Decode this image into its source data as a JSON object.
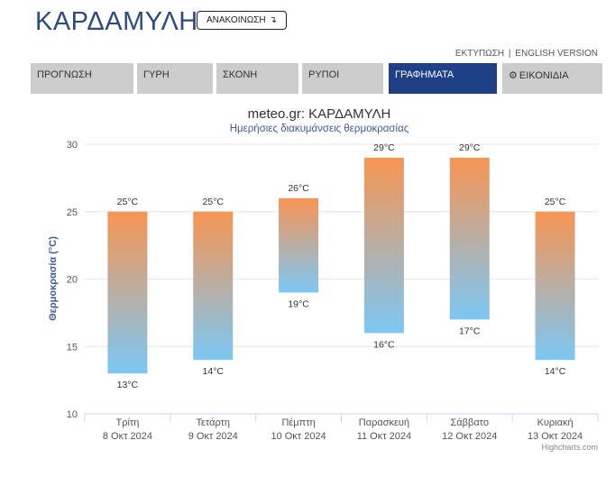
{
  "header": {
    "site_title": "ΚΑΡΔΑΜΥΛΗ",
    "announce_label": "ΑΝΑΚΟΙΝΩΣΗ",
    "announce_icon": "arrow-down-right-icon",
    "print_label": "ΕΚΤΥΠΩΣΗ",
    "separator": "|",
    "english_label": "ENGLISH VERSION"
  },
  "tabs": [
    {
      "label": "ΠΡΟΓΝΩΣΗ",
      "active": false
    },
    {
      "label": "ΓΥΡΗ",
      "active": false
    },
    {
      "label": "ΣΚΟΝΗ",
      "active": false
    },
    {
      "label": "ΡΥΠΟΙ",
      "active": false
    },
    {
      "label": "ΓΡΑΦΗΜΑΤΑ",
      "active": true
    },
    {
      "label": "ΕΙΚΟΝΙΔΙΑ",
      "active": false,
      "icon": "gear-icon"
    }
  ],
  "colors": {
    "accent": "#1f3f86",
    "title": "#2c4a86",
    "bar_top": "#f79553",
    "bar_bottom": "#7cc7f4",
    "tab_bg": "#cccccc",
    "subtitle": "#3d5a9e"
  },
  "chart_data": {
    "type": "columnrange",
    "title": "meteo.gr: ΚΑΡΔΑΜΥΛΗ",
    "subtitle": "Ημερήσιες διακυμάνσεις θερμοκρασίας",
    "ylabel": "Θερμοκρασία (°C)",
    "ylim": [
      10,
      30
    ],
    "yticks": [
      10,
      15,
      20,
      25,
      30
    ],
    "grid": true,
    "unit": "°C",
    "categories": [
      {
        "day": "Τρίτη",
        "date": "8 Οκτ 2024"
      },
      {
        "day": "Τετάρτη",
        "date": "9 Οκτ 2024"
      },
      {
        "day": "Πέμπτη",
        "date": "10 Οκτ 2024"
      },
      {
        "day": "Παρασκευή",
        "date": "11 Οκτ 2024"
      },
      {
        "day": "Σάββατο",
        "date": "12 Οκτ 2024"
      },
      {
        "day": "Κυριακή",
        "date": "13 Οκτ 2024"
      }
    ],
    "low": [
      13,
      14,
      19,
      16,
      17,
      14
    ],
    "high": [
      25,
      25,
      26,
      29,
      29,
      25
    ],
    "credit": "Highcharts.com"
  }
}
